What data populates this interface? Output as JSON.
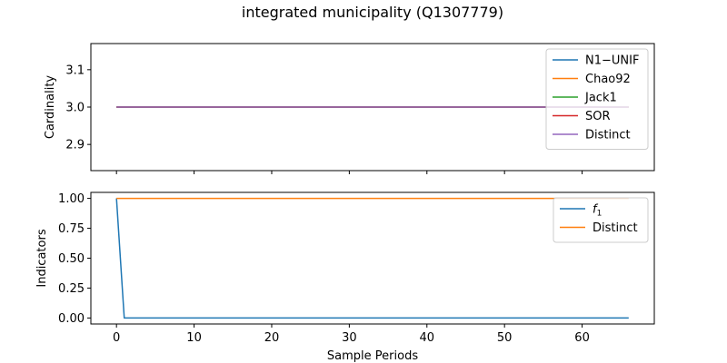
{
  "figure": {
    "title": "integrated municipality (Q1307779)"
  },
  "chart_data": [
    {
      "type": "line",
      "ylabel": "Cardinality",
      "xlabel": "",
      "xlim": [
        -3.3,
        69.3
      ],
      "ylim": [
        2.83,
        3.17
      ],
      "xticks": [
        0,
        10,
        20,
        30,
        40,
        50,
        60
      ],
      "yticks": [
        2.9,
        3.0,
        3.1
      ],
      "ytick_labels": [
        "2.9",
        "3.0",
        "3.1"
      ],
      "show_xtick_labels": false,
      "legend_position": "upper right",
      "series": [
        {
          "name": "N1−UNIF",
          "color": "#1f77b4",
          "x": [
            0,
            66
          ],
          "y": [
            3.0,
            3.0
          ]
        },
        {
          "name": "Chao92",
          "color": "#ff7f0e",
          "x": [
            0,
            66
          ],
          "y": [
            3.0,
            3.0
          ]
        },
        {
          "name": "Jack1",
          "color": "#2ca02c",
          "x": [
            0,
            66
          ],
          "y": [
            3.0,
            3.0
          ]
        },
        {
          "name": "SOR",
          "color": "#d62728",
          "x": [
            0,
            66
          ],
          "y": [
            3.0,
            3.0
          ]
        },
        {
          "name": "Distinct",
          "color": "#9467bd",
          "x": [
            0,
            66
          ],
          "y": [
            3.0,
            3.0
          ]
        }
      ]
    },
    {
      "type": "line",
      "ylabel": "Indicators",
      "xlabel": "Sample Periods",
      "xlim": [
        -3.3,
        69.3
      ],
      "ylim": [
        -0.05,
        1.05
      ],
      "xticks": [
        0,
        10,
        20,
        30,
        40,
        50,
        60
      ],
      "yticks": [
        0.0,
        0.25,
        0.5,
        0.75,
        1.0
      ],
      "ytick_labels": [
        "0.00",
        "0.25",
        "0.50",
        "0.75",
        "1.00"
      ],
      "show_xtick_labels": true,
      "legend_position": "upper right",
      "series": [
        {
          "name": "f1",
          "legend_base": "f",
          "legend_sub": "1",
          "color": "#1f77b4",
          "x": [
            0,
            1,
            66
          ],
          "y": [
            1.0,
            0.0,
            0.0
          ]
        },
        {
          "name": "Distinct",
          "color": "#ff7f0e",
          "x": [
            0,
            66
          ],
          "y": [
            1.0,
            1.0
          ]
        }
      ]
    }
  ]
}
